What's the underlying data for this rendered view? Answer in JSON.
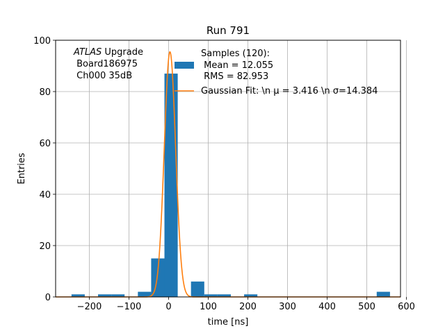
{
  "chart_data": {
    "type": "bar",
    "title": "Run 791",
    "xlabel": "time [ns]",
    "ylabel": "Entries",
    "xlim": [
      -285,
      585
    ],
    "ylim": [
      0,
      100
    ],
    "xticks": [
      -200,
      -100,
      0,
      100,
      200,
      300,
      400,
      500,
      600
    ],
    "yticks": [
      0,
      20,
      40,
      60,
      80,
      100
    ],
    "xtick_labels": [
      "−200",
      "−100",
      "0",
      "100",
      "200",
      "300",
      "400",
      "500",
      "600"
    ],
    "ytick_labels": [
      "0",
      "20",
      "40",
      "60",
      "80",
      "100"
    ],
    "grid": true,
    "bar_color": "#1f77b4",
    "fit_color": "#ff7f0e",
    "bin_width": 33.5,
    "bins": [
      {
        "x": -245,
        "value": 1
      },
      {
        "x": -178,
        "value": 1
      },
      {
        "x": -144.5,
        "value": 1
      },
      {
        "x": -77.5,
        "value": 2
      },
      {
        "x": -44,
        "value": 15
      },
      {
        "x": -10.5,
        "value": 87
      },
      {
        "x": 56.5,
        "value": 6
      },
      {
        "x": 90,
        "value": 1
      },
      {
        "x": 123.5,
        "value": 1
      },
      {
        "x": 190.5,
        "value": 1
      },
      {
        "x": 525,
        "value": 2
      }
    ],
    "fit": {
      "mu": 3.416,
      "sigma": 14.384,
      "amplitude": 95.5,
      "range": [
        -285,
        585
      ]
    },
    "legend": {
      "location": "upper right",
      "entries": [
        {
          "kind": "bar",
          "lines": [
            "Samples (120):",
            " Mean = 12.055",
            " RMS = 82.953"
          ]
        },
        {
          "kind": "line",
          "lines": [
            "Gaussian Fit: \\n μ = 3.416 \\n σ=14.384"
          ]
        }
      ]
    },
    "annotation": {
      "italic_part": "ATLAS",
      "rest_first_line": " Upgrade",
      "lines": [
        " Board186975",
        " Ch000 35dB"
      ]
    }
  }
}
